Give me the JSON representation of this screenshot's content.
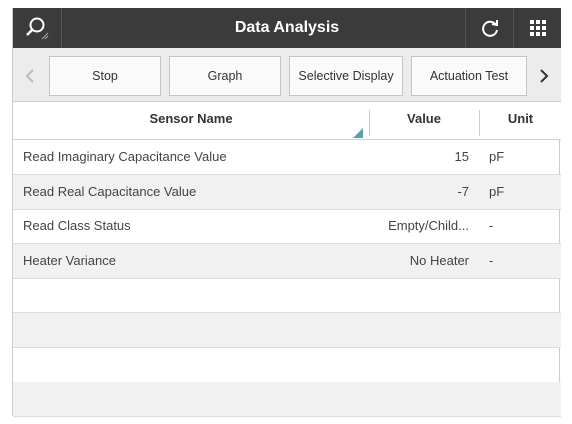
{
  "header": {
    "title": "Data Analysis"
  },
  "toolbar": {
    "buttons": [
      "Stop",
      "Graph",
      "Selective Display",
      "Actuation Test"
    ]
  },
  "table": {
    "columns": [
      "Sensor Name",
      "Value",
      "Unit"
    ],
    "rows": [
      [
        "Read Imaginary Capacitance Value",
        15,
        "pF"
      ],
      [
        "Read Real Capacitance Value",
        -7,
        "pF"
      ],
      [
        "Read Class Status",
        "Empty/Child...",
        "-"
      ],
      [
        "Heater Variance",
        "No Heater",
        "-"
      ]
    ]
  }
}
